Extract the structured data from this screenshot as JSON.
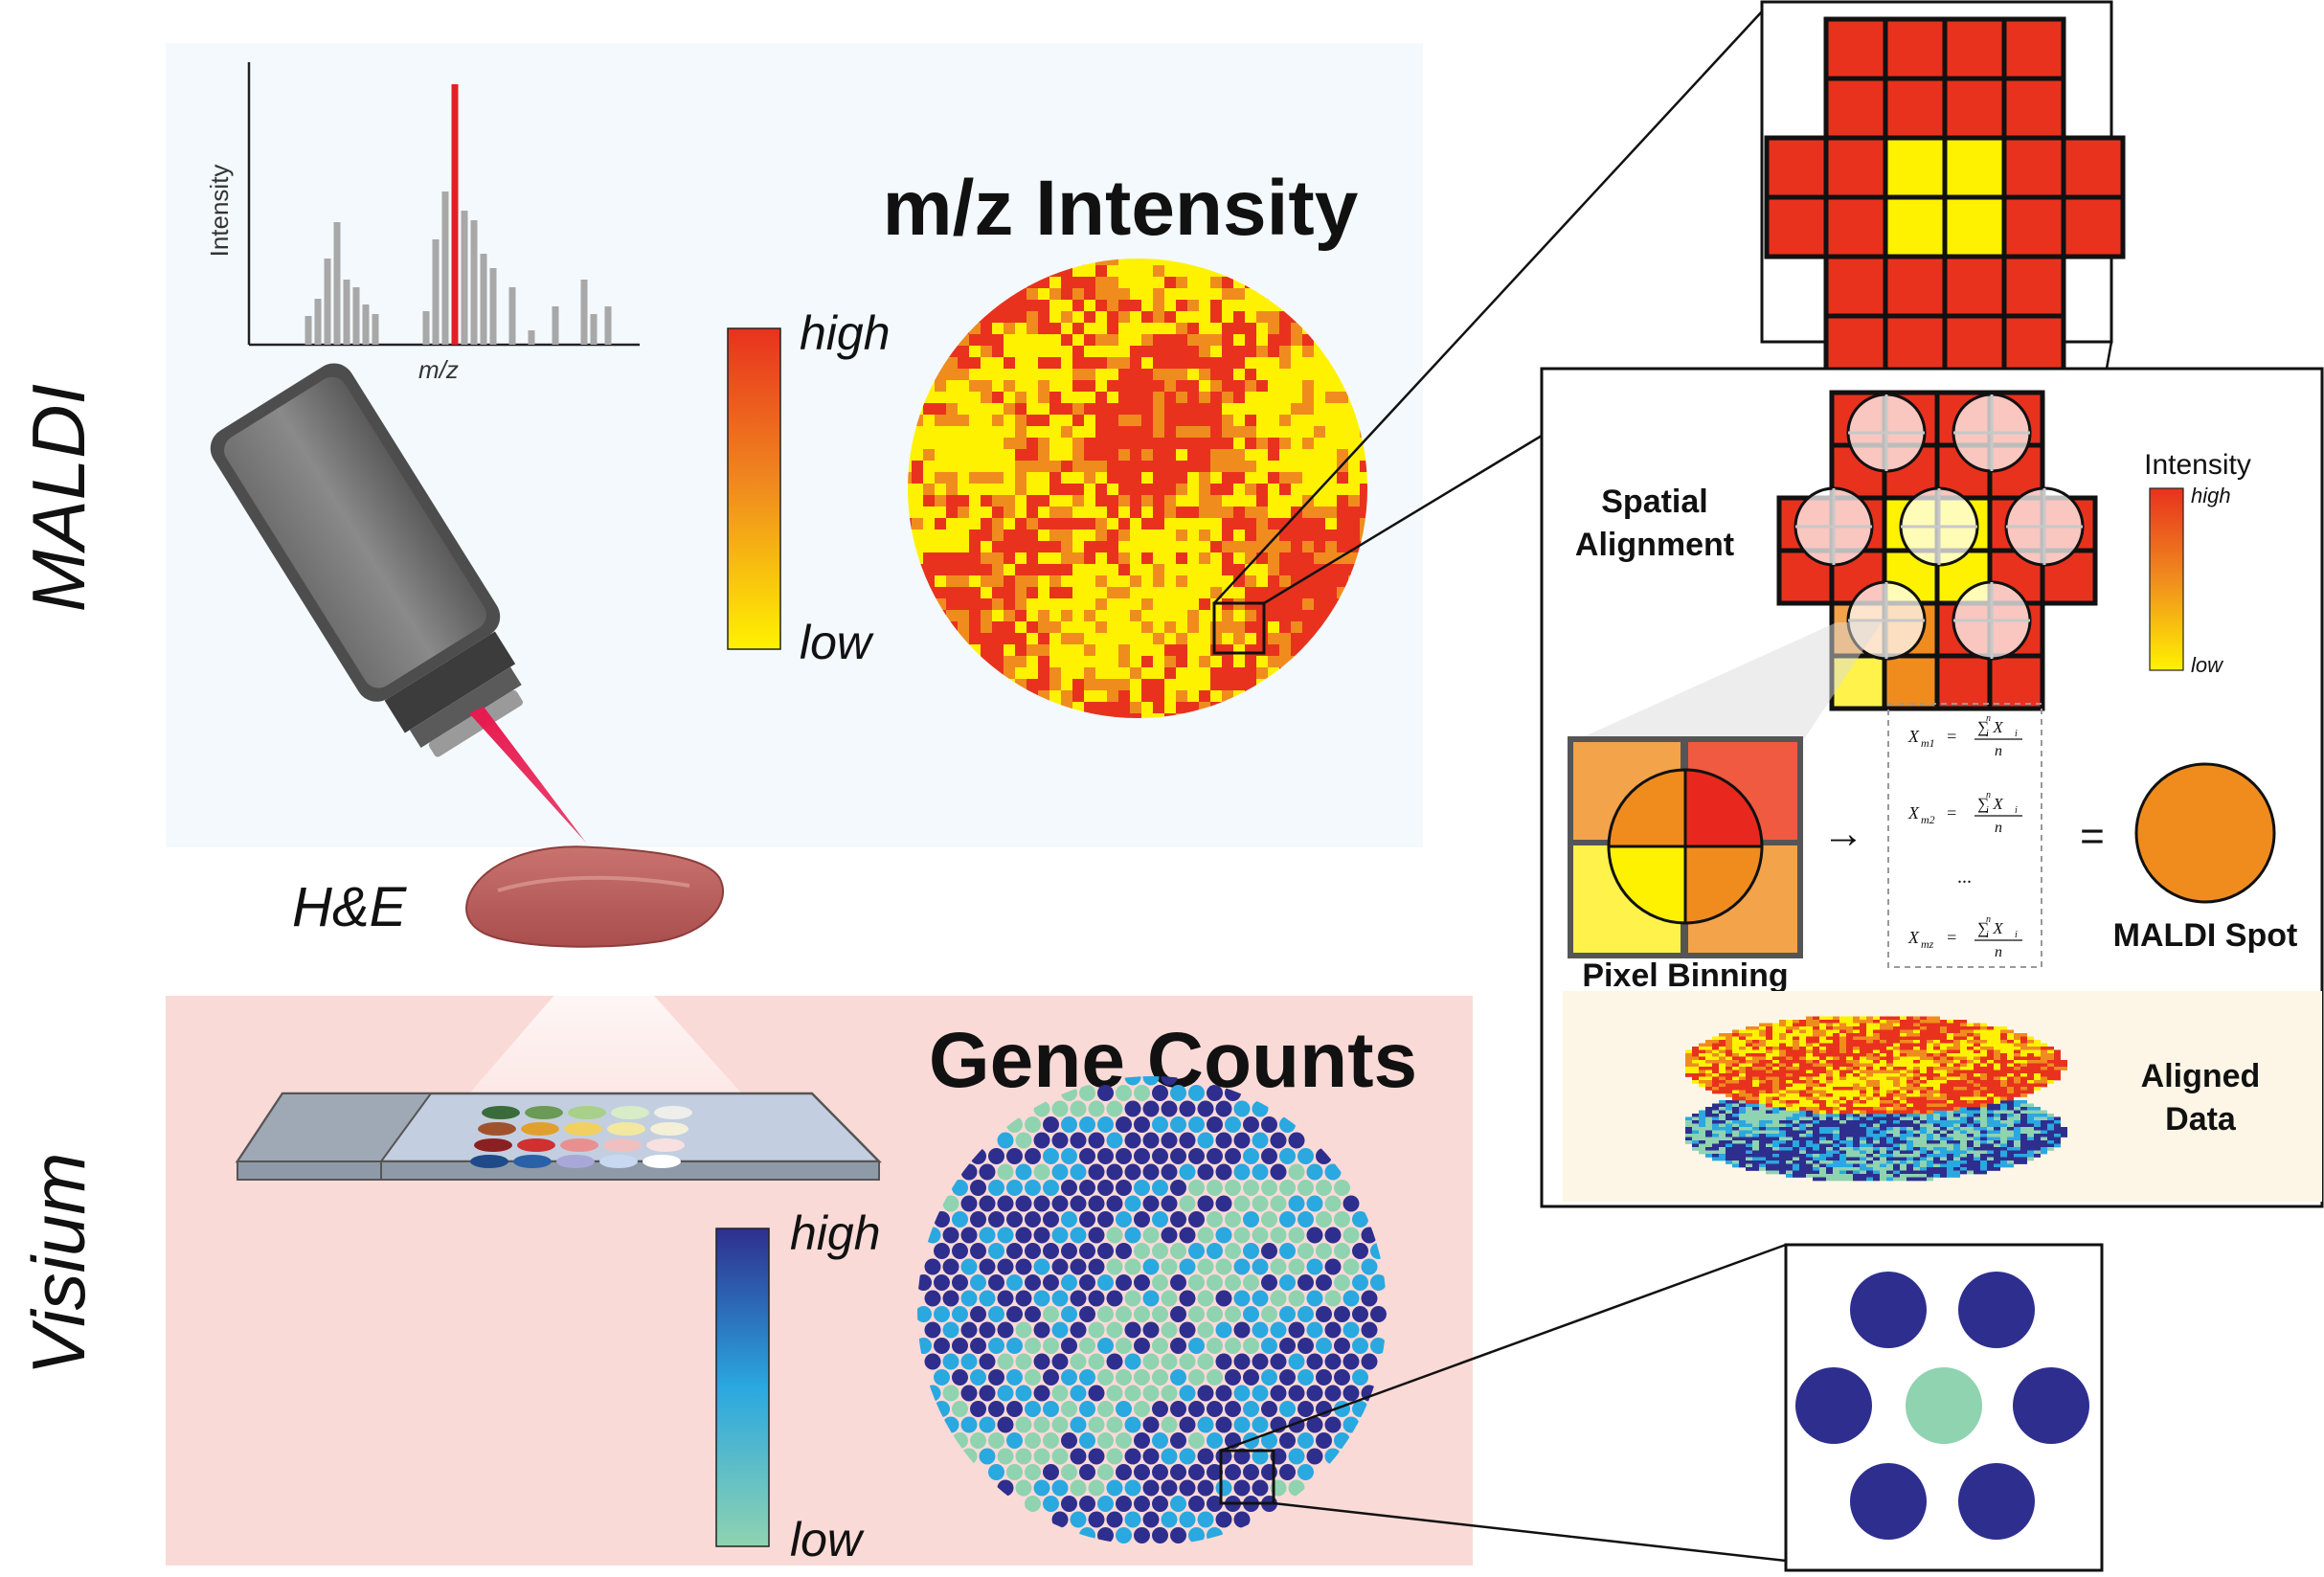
{
  "side_labels": {
    "maldi": "MALDI",
    "visium": "Visium"
  },
  "maldi_panel": {
    "title": "m/z Intensity",
    "colorbar_high": "high",
    "colorbar_low": "low",
    "spectrum": {
      "ylabel": "Intensity",
      "xlabel": "m/z"
    }
  },
  "tissue_label": "H&E",
  "visium_panel": {
    "title": "Gene Counts",
    "colorbar_high": "high",
    "colorbar_low": "low"
  },
  "alignment_box": {
    "spatial_alignment_line1": "Spatial",
    "spatial_alignment_line2": "Alignment",
    "intensity_title": "Intensity",
    "intensity_high": "high",
    "intensity_low": "low",
    "pixel_binning": "Pixel Binning",
    "maldi_spot": "MALDI Spot",
    "aligned_line1": "Aligned",
    "aligned_line2": "Data",
    "arrow": "→",
    "equals": "=",
    "ellipsis": "...",
    "formulas": [
      {
        "lhs_var": "X",
        "lhs_sub": "m1",
        "num": "∑ X",
        "num_sup": "n",
        "num_sub": "i",
        "num_sub2": "i",
        "den": "n"
      },
      {
        "lhs_var": "X",
        "lhs_sub": "m2",
        "num": "∑ X",
        "num_sup": "n",
        "num_sub": "i",
        "num_sub2": "i",
        "den": "n"
      },
      {
        "lhs_var": "X",
        "lhs_sub": "mz",
        "num": "∑ X",
        "num_sup": "n",
        "num_sub": "i",
        "num_sub2": "i",
        "den": "n"
      }
    ]
  },
  "colors": {
    "maldi_bg": "#f3f9fc",
    "visium_bg": "#fadad7",
    "aligned_bg": "#fdf6e6",
    "heat_high": "#e8321e",
    "heat_mid": "#f08c1e",
    "heat_low": "#fff200",
    "gene_high": "#2e2e8e",
    "gene_mid": "#2aa8e0",
    "gene_low": "#8fd3b0",
    "laser": "#e8194f",
    "spectrum_red": "#e41e26"
  }
}
